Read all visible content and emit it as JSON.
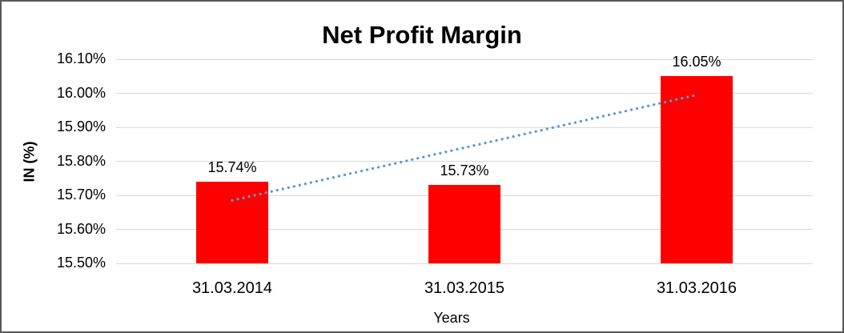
{
  "window": {
    "background": "#ffffff",
    "frame_border_color": "#595959"
  },
  "chart_data": {
    "type": "bar",
    "title": "Net Profit Margin",
    "xlabel": "Years",
    "ylabel": "IN (%)",
    "categories": [
      "31.03.2014",
      "31.03.2015",
      "31.03.2016"
    ],
    "series": [
      {
        "name": "Net Profit Margin",
        "color": "#FF0000",
        "values": [
          15.74,
          15.73,
          16.05
        ]
      }
    ],
    "data_labels": [
      "15.74%",
      "15.73%",
      "16.05%"
    ],
    "y_ticks": [
      {
        "value": 16.1,
        "label": "16.10%"
      },
      {
        "value": 16.0,
        "label": "16.00%"
      },
      {
        "value": 15.9,
        "label": "15.90%"
      },
      {
        "value": 15.8,
        "label": "15.80%"
      },
      {
        "value": 15.7,
        "label": "15.70%"
      },
      {
        "value": 15.6,
        "label": "15.60%"
      },
      {
        "value": 15.5,
        "label": "15.50%"
      }
    ],
    "ylim": [
      15.5,
      16.1
    ],
    "grid": true,
    "gridline_color": "#D9D9D9",
    "legend": "none",
    "text_color": "#000000",
    "trendline": {
      "type": "linear",
      "style": "dotted",
      "color": "#5B9BD5"
    }
  }
}
